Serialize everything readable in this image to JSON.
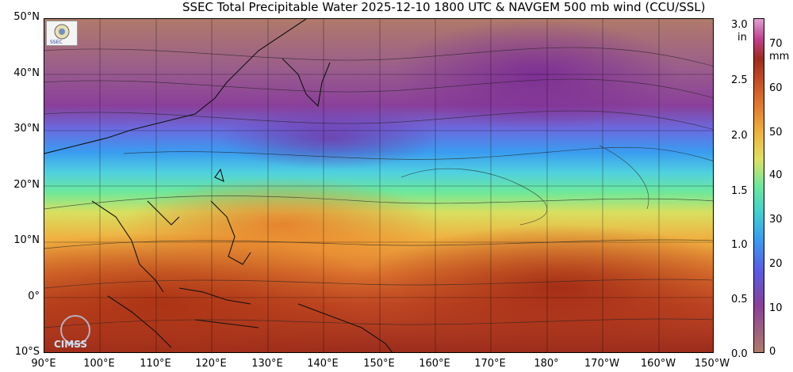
{
  "title": "SSEC Total Precipitable Water  2025-12-10 1800 UTC & NAVGEM 500 mb wind (CCU/SSL)",
  "lat_labels": [
    "50°N",
    "40°N",
    "30°N",
    "20°N",
    "10°N",
    "0°",
    "10°S"
  ],
  "lon_labels": [
    "90°E",
    "100°E",
    "110°E",
    "120°E",
    "130°E",
    "140°E",
    "150°E",
    "160°E",
    "170°E",
    "180°",
    "170°W",
    "160°W",
    "150°W"
  ],
  "colorbar": {
    "unit_in": "in",
    "unit_mm": "mm",
    "inch_ticks": [
      "3.0",
      "2.5",
      "2.0",
      "1.5",
      "1.0",
      "0.5",
      "0.0"
    ],
    "mm_ticks": [
      "70",
      "60",
      "50",
      "40",
      "30",
      "20",
      "10",
      "0"
    ]
  },
  "logos": {
    "ssec": "ssec-logo",
    "cimss": "CIMSS"
  }
}
